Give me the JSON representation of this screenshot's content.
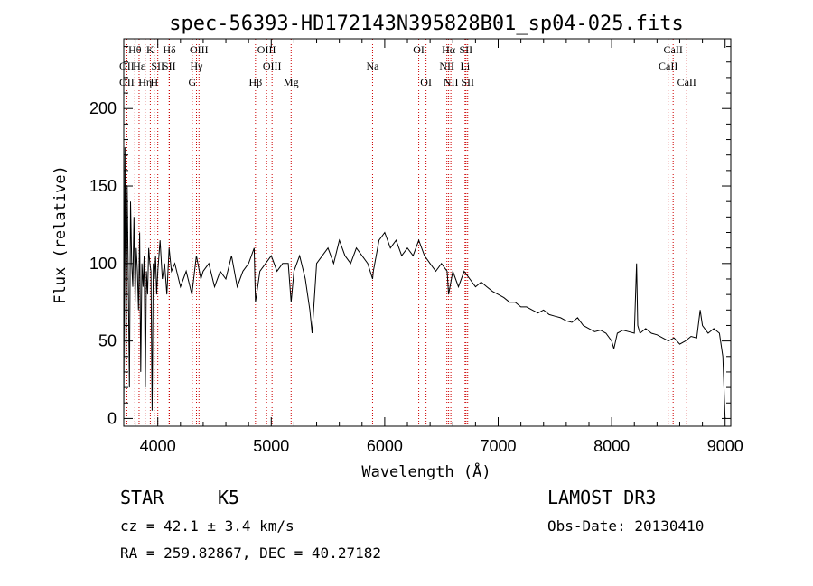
{
  "chart_data": {
    "type": "line",
    "title": "spec-56393-HD172143N395828B01_sp04-025.fits",
    "xlabel": "Wavelength (Å)",
    "ylabel": "Flux (relative)",
    "xlim": [
      3700,
      9050
    ],
    "ylim": [
      -5,
      245
    ],
    "xticks": [
      4000,
      5000,
      6000,
      7000,
      8000,
      9000
    ],
    "yticks": [
      0,
      50,
      100,
      150,
      200
    ],
    "xtick_labels": [
      "4000",
      "5000",
      "6000",
      "7000",
      "8000",
      "9000"
    ],
    "ytick_labels": [
      "0",
      "50",
      "100",
      "150",
      "200"
    ],
    "series": [
      {
        "name": "flux",
        "x": [
          3700,
          3710,
          3720,
          3730,
          3740,
          3750,
          3760,
          3770,
          3780,
          3790,
          3800,
          3810,
          3820,
          3830,
          3840,
          3850,
          3860,
          3870,
          3880,
          3890,
          3900,
          3910,
          3920,
          3930,
          3940,
          3950,
          3960,
          3970,
          3980,
          3990,
          4000,
          4020,
          4040,
          4060,
          4080,
          4100,
          4120,
          4150,
          4200,
          4250,
          4300,
          4340,
          4380,
          4400,
          4450,
          4500,
          4550,
          4600,
          4650,
          4700,
          4750,
          4800,
          4850,
          4861,
          4900,
          4950,
          5000,
          5050,
          5100,
          5150,
          5175,
          5200,
          5250,
          5300,
          5340,
          5360,
          5400,
          5450,
          5500,
          5550,
          5600,
          5650,
          5700,
          5750,
          5800,
          5850,
          5893,
          5900,
          5950,
          6000,
          6050,
          6100,
          6150,
          6200,
          6250,
          6300,
          6350,
          6400,
          6450,
          6500,
          6550,
          6563,
          6600,
          6650,
          6700,
          6750,
          6800,
          6850,
          6900,
          6950,
          7000,
          7050,
          7100,
          7150,
          7200,
          7250,
          7300,
          7350,
          7400,
          7450,
          7500,
          7550,
          7600,
          7650,
          7700,
          7750,
          7800,
          7850,
          7900,
          7950,
          8000,
          8020,
          8050,
          8100,
          8150,
          8200,
          8220,
          8230,
          8250,
          8300,
          8350,
          8400,
          8450,
          8500,
          8550,
          8600,
          8650,
          8700,
          8750,
          8780,
          8800,
          8850,
          8900,
          8950,
          8980,
          9000
        ],
        "y": [
          0,
          175,
          30,
          150,
          90,
          20,
          140,
          100,
          85,
          130,
          75,
          110,
          95,
          70,
          120,
          30,
          100,
          85,
          105,
          20,
          95,
          80,
          110,
          100,
          95,
          5,
          100,
          90,
          105,
          80,
          95,
          115,
          90,
          100,
          80,
          110,
          95,
          100,
          85,
          95,
          80,
          105,
          90,
          95,
          100,
          85,
          95,
          90,
          105,
          85,
          95,
          100,
          110,
          75,
          95,
          100,
          105,
          95,
          100,
          100,
          75,
          95,
          105,
          90,
          70,
          55,
          100,
          105,
          110,
          100,
          115,
          105,
          100,
          110,
          105,
          100,
          90,
          95,
          115,
          120,
          110,
          115,
          105,
          110,
          105,
          115,
          105,
          100,
          95,
          100,
          95,
          80,
          95,
          85,
          95,
          90,
          85,
          88,
          85,
          82,
          80,
          78,
          75,
          75,
          72,
          72,
          70,
          68,
          70,
          67,
          66,
          65,
          63,
          62,
          65,
          60,
          58,
          56,
          57,
          55,
          50,
          45,
          55,
          57,
          56,
          55,
          100,
          60,
          55,
          58,
          55,
          54,
          52,
          50,
          52,
          48,
          50,
          53,
          52,
          70,
          60,
          55,
          58,
          55,
          40,
          0
        ]
      }
    ],
    "spectral_lines": [
      {
        "label": "OII",
        "wavelength": 3727,
        "row": 2
      },
      {
        "label": "OII",
        "wavelength": 3727,
        "row": 3
      },
      {
        "label": "Hθ",
        "wavelength": 3798,
        "row": 1
      },
      {
        "label": "Hε",
        "wavelength": 3835,
        "row": 2
      },
      {
        "label": "Hη",
        "wavelength": 3889,
        "row": 3
      },
      {
        "label": "K",
        "wavelength": 3934,
        "row": 1
      },
      {
        "label": "H",
        "wavelength": 3969,
        "row": 3
      },
      {
        "label": "SII",
        "wavelength": 4000,
        "row": 2
      },
      {
        "label": "Hδ",
        "wavelength": 4102,
        "row": 1
      },
      {
        "label": "SII",
        "wavelength": 4100,
        "row": 2
      },
      {
        "label": "OIII",
        "wavelength": 4363,
        "row": 1
      },
      {
        "label": "Hγ",
        "wavelength": 4341,
        "row": 2
      },
      {
        "label": "G",
        "wavelength": 4304,
        "row": 3
      },
      {
        "label": "Hβ",
        "wavelength": 4861,
        "row": 3
      },
      {
        "label": "OIII",
        "wavelength": 4959,
        "row": 1
      },
      {
        "label": "OIII",
        "wavelength": 5007,
        "row": 2
      },
      {
        "label": "Mg",
        "wavelength": 5175,
        "row": 3
      },
      {
        "label": "Na",
        "wavelength": 5893,
        "row": 2
      },
      {
        "label": "OI",
        "wavelength": 6300,
        "row": 1
      },
      {
        "label": "OI",
        "wavelength": 6364,
        "row": 3
      },
      {
        "label": "Hα",
        "wavelength": 6563,
        "row": 1
      },
      {
        "label": "NII",
        "wavelength": 6548,
        "row": 2
      },
      {
        "label": "NII",
        "wavelength": 6583,
        "row": 3
      },
      {
        "label": "SII",
        "wavelength": 6716,
        "row": 1
      },
      {
        "label": "Li",
        "wavelength": 6708,
        "row": 2
      },
      {
        "label": "SII",
        "wavelength": 6731,
        "row": 3
      },
      {
        "label": "CaII",
        "wavelength": 8498,
        "row": 2
      },
      {
        "label": "CaII",
        "wavelength": 8542,
        "row": 1
      },
      {
        "label": "CaII",
        "wavelength": 8662,
        "row": 3
      }
    ],
    "line_color": "#cc0000",
    "spectrum_color": "#000000"
  },
  "info": {
    "object_class": "STAR",
    "subclass": "K5",
    "survey": "LAMOST DR3",
    "redshift": "cz = 42.1 ± 3.4 km/s",
    "obs_date": "Obs-Date: 20130410",
    "coords": "RA = 259.82867, DEC =  40.27182"
  }
}
